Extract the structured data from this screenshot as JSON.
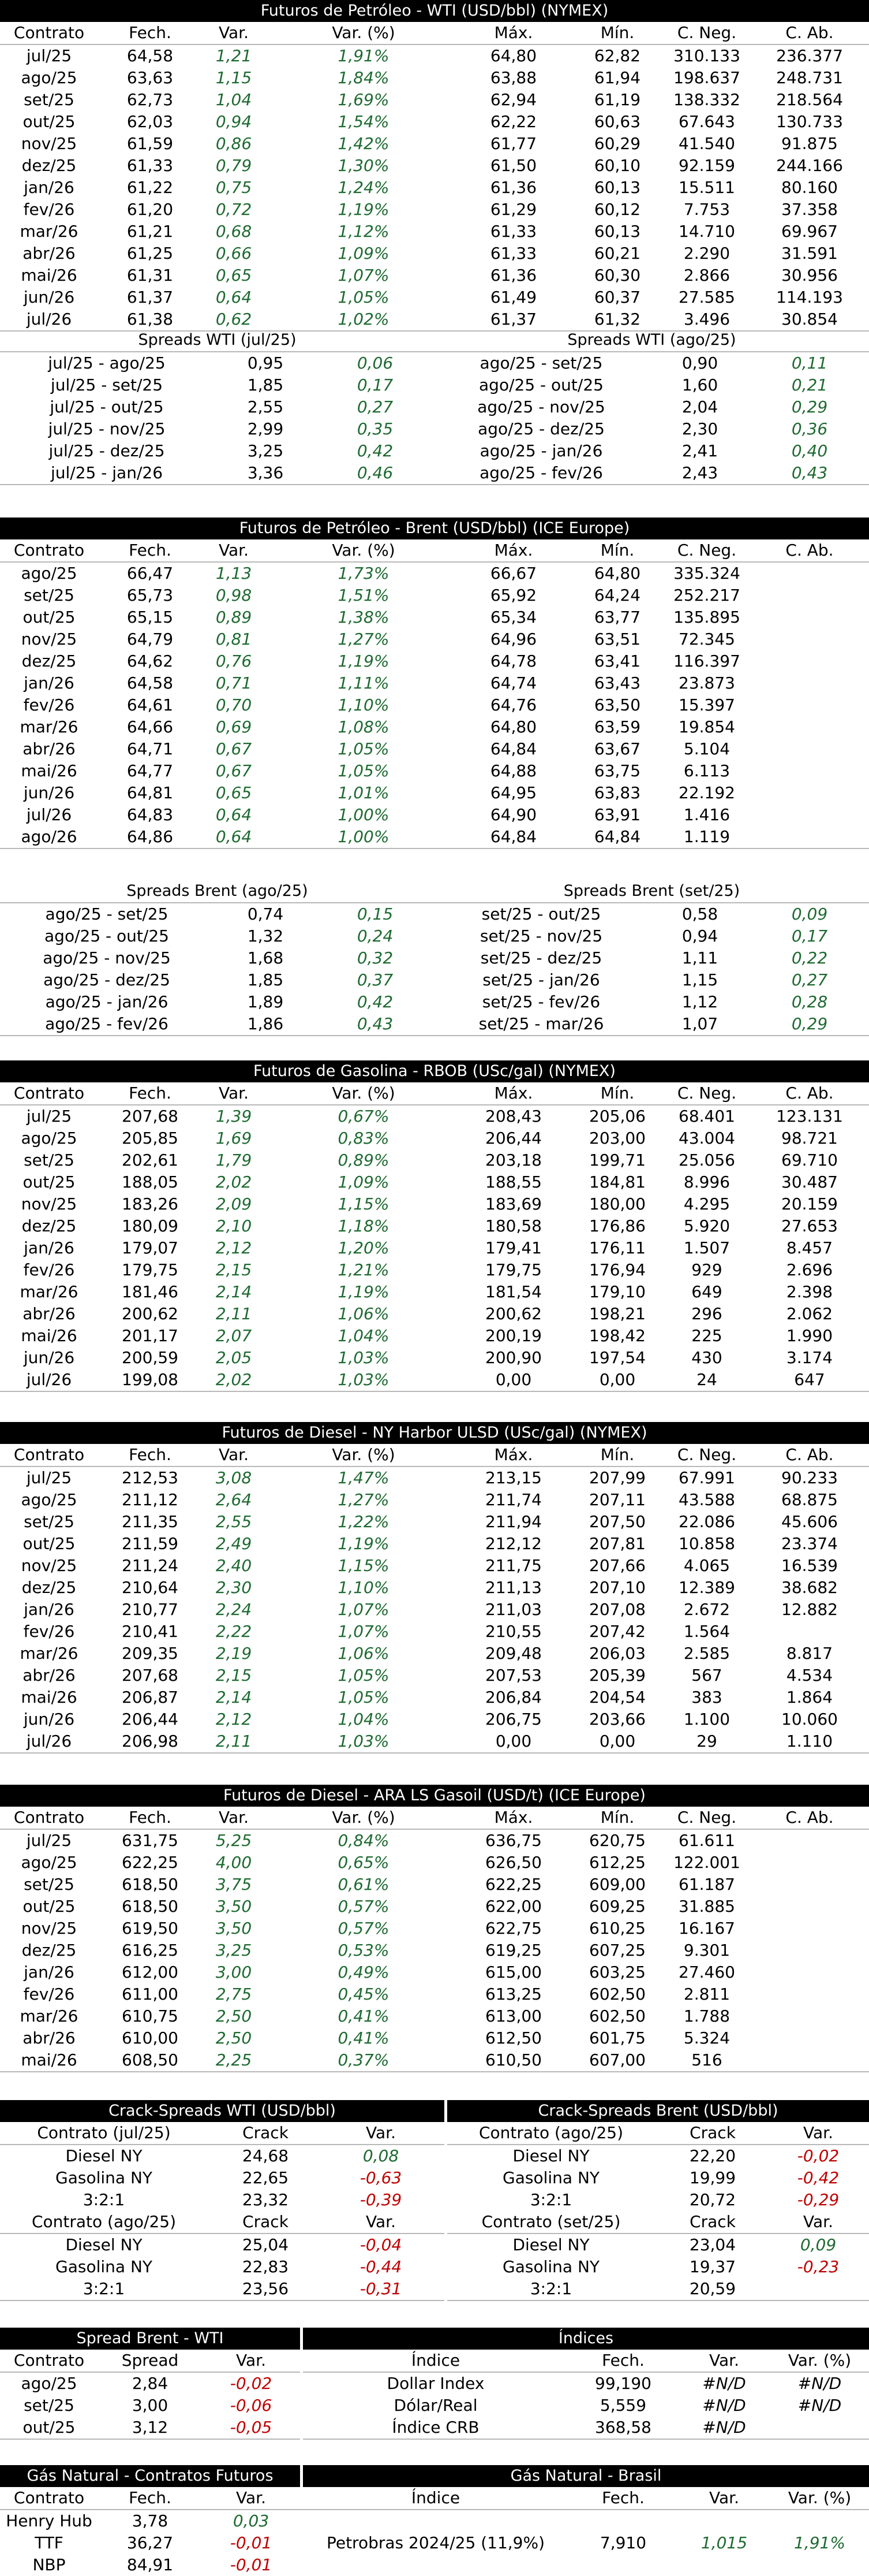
{
  "colors": {
    "positive": "#1d6a30",
    "negative": "#c00000",
    "header_bg": "#000000"
  },
  "futures_headers": [
    "Contrato",
    "Fech.",
    "Var.",
    "Var. (%)",
    "Máx.",
    "Mín.",
    "C. Neg.",
    "C. Ab."
  ],
  "wti": {
    "title": "Futuros de Petróleo - WTI (USD/bbl) (NYMEX)",
    "rows": [
      [
        "jul/25",
        "64,58",
        "1,21",
        "1,91%",
        "64,80",
        "62,82",
        "310.133",
        "236.377"
      ],
      [
        "ago/25",
        "63,63",
        "1,15",
        "1,84%",
        "63,88",
        "61,94",
        "198.637",
        "248.731"
      ],
      [
        "set/25",
        "62,73",
        "1,04",
        "1,69%",
        "62,94",
        "61,19",
        "138.332",
        "218.564"
      ],
      [
        "out/25",
        "62,03",
        "0,94",
        "1,54%",
        "62,22",
        "60,63",
        "67.643",
        "130.733"
      ],
      [
        "nov/25",
        "61,59",
        "0,86",
        "1,42%",
        "61,77",
        "60,29",
        "41.540",
        "91.875"
      ],
      [
        "dez/25",
        "61,33",
        "0,79",
        "1,30%",
        "61,50",
        "60,10",
        "92.159",
        "244.166"
      ],
      [
        "jan/26",
        "61,22",
        "0,75",
        "1,24%",
        "61,36",
        "60,13",
        "15.511",
        "80.160"
      ],
      [
        "fev/26",
        "61,20",
        "0,72",
        "1,19%",
        "61,29",
        "60,12",
        "7.753",
        "37.358"
      ],
      [
        "mar/26",
        "61,21",
        "0,68",
        "1,12%",
        "61,33",
        "60,13",
        "14.710",
        "69.967"
      ],
      [
        "abr/26",
        "61,25",
        "0,66",
        "1,09%",
        "61,33",
        "60,21",
        "2.290",
        "31.591"
      ],
      [
        "mai/26",
        "61,31",
        "0,65",
        "1,07%",
        "61,36",
        "60,30",
        "2.866",
        "30.956"
      ],
      [
        "jun/26",
        "61,37",
        "0,64",
        "1,05%",
        "61,49",
        "60,37",
        "27.585",
        "114.193"
      ],
      [
        "jul/26",
        "61,38",
        "0,62",
        "1,02%",
        "61,37",
        "61,32",
        "3.496",
        "30.854"
      ]
    ],
    "spreads_left_title": "Spreads WTI (jul/25)",
    "spreads_right_title": "Spreads WTI (ago/25)",
    "spreads_left": [
      [
        "jul/25 - ago/25",
        "0,95",
        "0,06"
      ],
      [
        "jul/25 - set/25",
        "1,85",
        "0,17"
      ],
      [
        "jul/25 - out/25",
        "2,55",
        "0,27"
      ],
      [
        "jul/25 - nov/25",
        "2,99",
        "0,35"
      ],
      [
        "jul/25 - dez/25",
        "3,25",
        "0,42"
      ],
      [
        "jul/25 - jan/26",
        "3,36",
        "0,46"
      ]
    ],
    "spreads_right": [
      [
        "ago/25 - set/25",
        "0,90",
        "0,11"
      ],
      [
        "ago/25 - out/25",
        "1,60",
        "0,21"
      ],
      [
        "ago/25 - nov/25",
        "2,04",
        "0,29"
      ],
      [
        "ago/25 - dez/25",
        "2,30",
        "0,36"
      ],
      [
        "ago/25 - jan/26",
        "2,41",
        "0,40"
      ],
      [
        "ago/25 - fev/26",
        "2,43",
        "0,43"
      ]
    ]
  },
  "brent": {
    "title": "Futuros de Petróleo - Brent (USD/bbl) (ICE Europe)",
    "rows": [
      [
        "ago/25",
        "66,47",
        "1,13",
        "1,73%",
        "66,67",
        "64,80",
        "335.324",
        ""
      ],
      [
        "set/25",
        "65,73",
        "0,98",
        "1,51%",
        "65,92",
        "64,24",
        "252.217",
        ""
      ],
      [
        "out/25",
        "65,15",
        "0,89",
        "1,38%",
        "65,34",
        "63,77",
        "135.895",
        ""
      ],
      [
        "nov/25",
        "64,79",
        "0,81",
        "1,27%",
        "64,96",
        "63,51",
        "72.345",
        ""
      ],
      [
        "dez/25",
        "64,62",
        "0,76",
        "1,19%",
        "64,78",
        "63,41",
        "116.397",
        ""
      ],
      [
        "jan/26",
        "64,58",
        "0,71",
        "1,11%",
        "64,74",
        "63,43",
        "23.873",
        ""
      ],
      [
        "fev/26",
        "64,61",
        "0,70",
        "1,10%",
        "64,76",
        "63,50",
        "15.397",
        ""
      ],
      [
        "mar/26",
        "64,66",
        "0,69",
        "1,08%",
        "64,80",
        "63,59",
        "19.854",
        ""
      ],
      [
        "abr/26",
        "64,71",
        "0,67",
        "1,05%",
        "64,84",
        "63,67",
        "5.104",
        ""
      ],
      [
        "mai/26",
        "64,77",
        "0,67",
        "1,05%",
        "64,88",
        "63,75",
        "6.113",
        ""
      ],
      [
        "jun/26",
        "64,81",
        "0,65",
        "1,01%",
        "64,95",
        "63,83",
        "22.192",
        ""
      ],
      [
        "jul/26",
        "64,83",
        "0,64",
        "1,00%",
        "64,90",
        "63,91",
        "1.416",
        ""
      ],
      [
        "ago/26",
        "64,86",
        "0,64",
        "1,00%",
        "64,84",
        "64,84",
        "1.119",
        ""
      ]
    ],
    "spreads_left_title": "Spreads Brent (ago/25)",
    "spreads_right_title": "Spreads Brent (set/25)",
    "spreads_left": [
      [
        "ago/25 - set/25",
        "0,74",
        "0,15"
      ],
      [
        "ago/25 - out/25",
        "1,32",
        "0,24"
      ],
      [
        "ago/25 - nov/25",
        "1,68",
        "0,32"
      ],
      [
        "ago/25 - dez/25",
        "1,85",
        "0,37"
      ],
      [
        "ago/25 - jan/26",
        "1,89",
        "0,42"
      ],
      [
        "ago/25 - fev/26",
        "1,86",
        "0,43"
      ]
    ],
    "spreads_right": [
      [
        "set/25 - out/25",
        "0,58",
        "0,09"
      ],
      [
        "set/25 - nov/25",
        "0,94",
        "0,17"
      ],
      [
        "set/25 - dez/25",
        "1,11",
        "0,22"
      ],
      [
        "set/25 - jan/26",
        "1,15",
        "0,27"
      ],
      [
        "set/25 - fev/26",
        "1,12",
        "0,28"
      ],
      [
        "set/25 - mar/26",
        "1,07",
        "0,29"
      ]
    ]
  },
  "rbob": {
    "title": "Futuros de Gasolina - RBOB (USc/gal) (NYMEX)",
    "rows": [
      [
        "jul/25",
        "207,68",
        "1,39",
        "0,67%",
        "208,43",
        "205,06",
        "68.401",
        "123.131"
      ],
      [
        "ago/25",
        "205,85",
        "1,69",
        "0,83%",
        "206,44",
        "203,00",
        "43.004",
        "98.721"
      ],
      [
        "set/25",
        "202,61",
        "1,79",
        "0,89%",
        "203,18",
        "199,71",
        "25.056",
        "69.710"
      ],
      [
        "out/25",
        "188,05",
        "2,02",
        "1,09%",
        "188,55",
        "184,81",
        "8.996",
        "30.487"
      ],
      [
        "nov/25",
        "183,26",
        "2,09",
        "1,15%",
        "183,69",
        "180,00",
        "4.295",
        "20.159"
      ],
      [
        "dez/25",
        "180,09",
        "2,10",
        "1,18%",
        "180,58",
        "176,86",
        "5.920",
        "27.653"
      ],
      [
        "jan/26",
        "179,07",
        "2,12",
        "1,20%",
        "179,41",
        "176,11",
        "1.507",
        "8.457"
      ],
      [
        "fev/26",
        "179,75",
        "2,15",
        "1,21%",
        "179,75",
        "176,94",
        "929",
        "2.696"
      ],
      [
        "mar/26",
        "181,46",
        "2,14",
        "1,19%",
        "181,54",
        "179,10",
        "649",
        "2.398"
      ],
      [
        "abr/26",
        "200,62",
        "2,11",
        "1,06%",
        "200,62",
        "198,21",
        "296",
        "2.062"
      ],
      [
        "mai/26",
        "201,17",
        "2,07",
        "1,04%",
        "200,19",
        "198,42",
        "225",
        "1.990"
      ],
      [
        "jun/26",
        "200,59",
        "2,05",
        "1,03%",
        "200,90",
        "197,54",
        "430",
        "3.174"
      ],
      [
        "jul/26",
        "199,08",
        "2,02",
        "1,03%",
        "0,00",
        "0,00",
        "24",
        "647"
      ]
    ]
  },
  "ulsd": {
    "title": "Futuros de Diesel - NY Harbor ULSD (USc/gal) (NYMEX)",
    "rows": [
      [
        "jul/25",
        "212,53",
        "3,08",
        "1,47%",
        "213,15",
        "207,99",
        "67.991",
        "90.233"
      ],
      [
        "ago/25",
        "211,12",
        "2,64",
        "1,27%",
        "211,74",
        "207,11",
        "43.588",
        "68.875"
      ],
      [
        "set/25",
        "211,35",
        "2,55",
        "1,22%",
        "211,94",
        "207,50",
        "22.086",
        "45.606"
      ],
      [
        "out/25",
        "211,59",
        "2,49",
        "1,19%",
        "212,12",
        "207,81",
        "10.858",
        "23.374"
      ],
      [
        "nov/25",
        "211,24",
        "2,40",
        "1,15%",
        "211,75",
        "207,66",
        "4.065",
        "16.539"
      ],
      [
        "dez/25",
        "210,64",
        "2,30",
        "1,10%",
        "211,13",
        "207,10",
        "12.389",
        "38.682"
      ],
      [
        "jan/26",
        "210,77",
        "2,24",
        "1,07%",
        "211,03",
        "207,08",
        "2.672",
        "12.882"
      ],
      [
        "fev/26",
        "210,41",
        "2,22",
        "1,07%",
        "210,55",
        "207,42",
        "1.564",
        ""
      ],
      [
        "mar/26",
        "209,35",
        "2,19",
        "1,06%",
        "209,48",
        "206,03",
        "2.585",
        "8.817"
      ],
      [
        "abr/26",
        "207,68",
        "2,15",
        "1,05%",
        "207,53",
        "205,39",
        "567",
        "4.534"
      ],
      [
        "mai/26",
        "206,87",
        "2,14",
        "1,05%",
        "206,84",
        "204,54",
        "383",
        "1.864"
      ],
      [
        "jun/26",
        "206,44",
        "2,12",
        "1,04%",
        "206,75",
        "203,66",
        "1.100",
        "10.060"
      ],
      [
        "jul/26",
        "206,98",
        "2,11",
        "1,03%",
        "0,00",
        "0,00",
        "29",
        "1.110"
      ]
    ]
  },
  "gasoil": {
    "title": "Futuros de Diesel - ARA LS Gasoil (USD/t) (ICE Europe)",
    "rows": [
      [
        "jul/25",
        "631,75",
        "5,25",
        "0,84%",
        "636,75",
        "620,75",
        "61.611",
        ""
      ],
      [
        "ago/25",
        "622,25",
        "4,00",
        "0,65%",
        "626,50",
        "612,25",
        "122.001",
        ""
      ],
      [
        "set/25",
        "618,50",
        "3,75",
        "0,61%",
        "622,25",
        "609,00",
        "61.187",
        ""
      ],
      [
        "out/25",
        "618,50",
        "3,50",
        "0,57%",
        "622,00",
        "609,25",
        "31.885",
        ""
      ],
      [
        "nov/25",
        "619,50",
        "3,50",
        "0,57%",
        "622,75",
        "610,25",
        "16.167",
        ""
      ],
      [
        "dez/25",
        "616,25",
        "3,25",
        "0,53%",
        "619,25",
        "607,25",
        "9.301",
        ""
      ],
      [
        "jan/26",
        "612,00",
        "3,00",
        "0,49%",
        "615,00",
        "603,25",
        "27.460",
        ""
      ],
      [
        "fev/26",
        "611,00",
        "2,75",
        "0,45%",
        "613,25",
        "602,50",
        "2.811",
        ""
      ],
      [
        "mar/26",
        "610,75",
        "2,50",
        "0,41%",
        "613,00",
        "602,50",
        "1.788",
        ""
      ],
      [
        "abr/26",
        "610,00",
        "2,50",
        "0,41%",
        "612,50",
        "601,75",
        "5.324",
        ""
      ],
      [
        "mai/26",
        "608,50",
        "2,25",
        "0,37%",
        "610,50",
        "607,00",
        "516",
        ""
      ]
    ]
  },
  "crack": {
    "wti_title": "Crack-Spreads WTI (USD/bbl)",
    "brent_title": "Crack-Spreads Brent (USD/bbl)",
    "col_crack": "Crack",
    "col_var": "Var.",
    "wti_blocks": [
      {
        "contract": "Contrato (jul/25)",
        "rows": [
          [
            "Diesel NY",
            "24,68",
            "0,08"
          ],
          [
            "Gasolina NY",
            "22,65",
            "-0,63"
          ],
          [
            "3:2:1",
            "23,32",
            "-0,39"
          ]
        ]
      },
      {
        "contract": "Contrato (ago/25)",
        "rows": [
          [
            "Diesel NY",
            "25,04",
            "-0,04"
          ],
          [
            "Gasolina NY",
            "22,83",
            "-0,44"
          ],
          [
            "3:2:1",
            "23,56",
            "-0,31"
          ]
        ]
      }
    ],
    "brent_blocks": [
      {
        "contract": "Contrato (ago/25)",
        "rows": [
          [
            "Diesel NY",
            "22,20",
            "-0,02"
          ],
          [
            "Gasolina NY",
            "19,99",
            "-0,42"
          ],
          [
            "3:2:1",
            "20,72",
            "-0,29"
          ]
        ]
      },
      {
        "contract": "Contrato (set/25)",
        "rows": [
          [
            "Diesel NY",
            "23,04",
            "0,09"
          ],
          [
            "Gasolina NY",
            "19,37",
            "-0,23"
          ],
          [
            "3:2:1",
            "20,59",
            ""
          ]
        ]
      }
    ]
  },
  "spread_bw": {
    "title": "Spread Brent - WTI",
    "headers": [
      "Contrato",
      "Spread",
      "Var."
    ],
    "rows": [
      [
        "ago/25",
        "2,84",
        "-0,02"
      ],
      [
        "set/25",
        "3,00",
        "-0,06"
      ],
      [
        "out/25",
        "3,12",
        "-0,05"
      ]
    ]
  },
  "indices": {
    "title": "Índices",
    "headers": [
      "Índice",
      "Fech.",
      "Var.",
      "Var. (%)"
    ],
    "rows": [
      [
        "Dollar Index",
        "99,190",
        "#N/D",
        "#N/D"
      ],
      [
        "Dólar/Real",
        "5,559",
        "#N/D",
        "#N/D"
      ],
      [
        "Índice CRB",
        "368,58",
        "#N/D",
        ""
      ]
    ]
  },
  "gas_futures": {
    "title": "Gás Natural - Contratos Futuros",
    "headers": [
      "Contrato",
      "Fech.",
      "Var."
    ],
    "rows": [
      [
        "Henry Hub",
        "3,78",
        "0,03"
      ],
      [
        "TTF",
        "36,27",
        "-0,01"
      ],
      [
        "NBP",
        "84,91",
        "-0,01"
      ]
    ]
  },
  "gas_brasil": {
    "title": "Gás Natural - Brasil",
    "headers": [
      "Índice",
      "Fech.",
      "Var.",
      "Var. (%)"
    ],
    "rows": [
      [
        "Petrobras 2024/25 (11,9%)",
        "7,910",
        "1,015",
        "1,91%"
      ]
    ]
  }
}
